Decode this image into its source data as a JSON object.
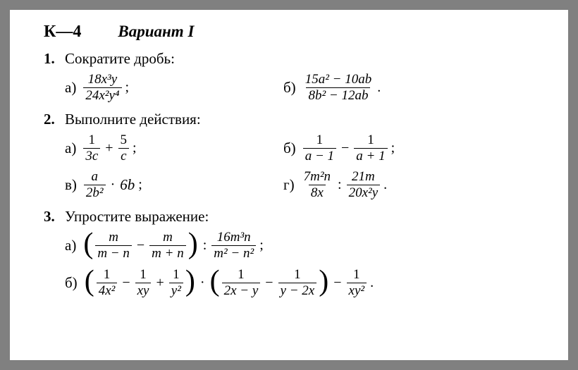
{
  "header": {
    "ktitle": "К—4",
    "variant": "Вариант I"
  },
  "p1": {
    "num": "1.",
    "text": "Сократите дробь:",
    "a": {
      "label": "а)",
      "frac_num": "18x³y",
      "frac_den": "24x²y⁴",
      "punct": ";"
    },
    "b": {
      "label": "б)",
      "frac_num": "15a² − 10ab",
      "frac_den": "8b² − 12ab",
      "punct": "."
    }
  },
  "p2": {
    "num": "2.",
    "text": "Выполните действия:",
    "a": {
      "label": "а)",
      "f1n": "1",
      "f1d": "3c",
      "op": "+",
      "f2n": "5",
      "f2d": "c",
      "punct": ";"
    },
    "b": {
      "label": "б)",
      "f1n": "1",
      "f1d": "a − 1",
      "op": "−",
      "f2n": "1",
      "f2d": "a + 1",
      "punct": ";"
    },
    "c": {
      "label": "в)",
      "f1n": "a",
      "f1d": "2b²",
      "op": "·",
      "rhs": "6b",
      "punct": ";"
    },
    "d": {
      "label": "г)",
      "f1n": "7m²n",
      "f1d": "8x",
      "op": ":",
      "f2n": "21m",
      "f2d": "20x²y",
      "punct": "."
    }
  },
  "p3": {
    "num": "3.",
    "text": "Упростите выражение:",
    "a": {
      "label": "а)",
      "f1n": "m",
      "f1d": "m − n",
      "op1": "−",
      "f2n": "m",
      "f2d": "m + n",
      "op2": ":",
      "f3n": "16m³n",
      "f3d": "m² − n²",
      "punct": ";"
    },
    "b": {
      "label": "б)",
      "f1n": "1",
      "f1d": "4x²",
      "op1": "−",
      "f2n": "1",
      "f2d": "xy",
      "op2": "+",
      "f3n": "1",
      "f3d": "y²",
      "op3": "·",
      "f4n": "1",
      "f4d": "2x − y",
      "op4": "−",
      "f5n": "1",
      "f5d": "y − 2x",
      "op5": "−",
      "f6n": "1",
      "f6d": "xy²",
      "punct": "."
    }
  }
}
